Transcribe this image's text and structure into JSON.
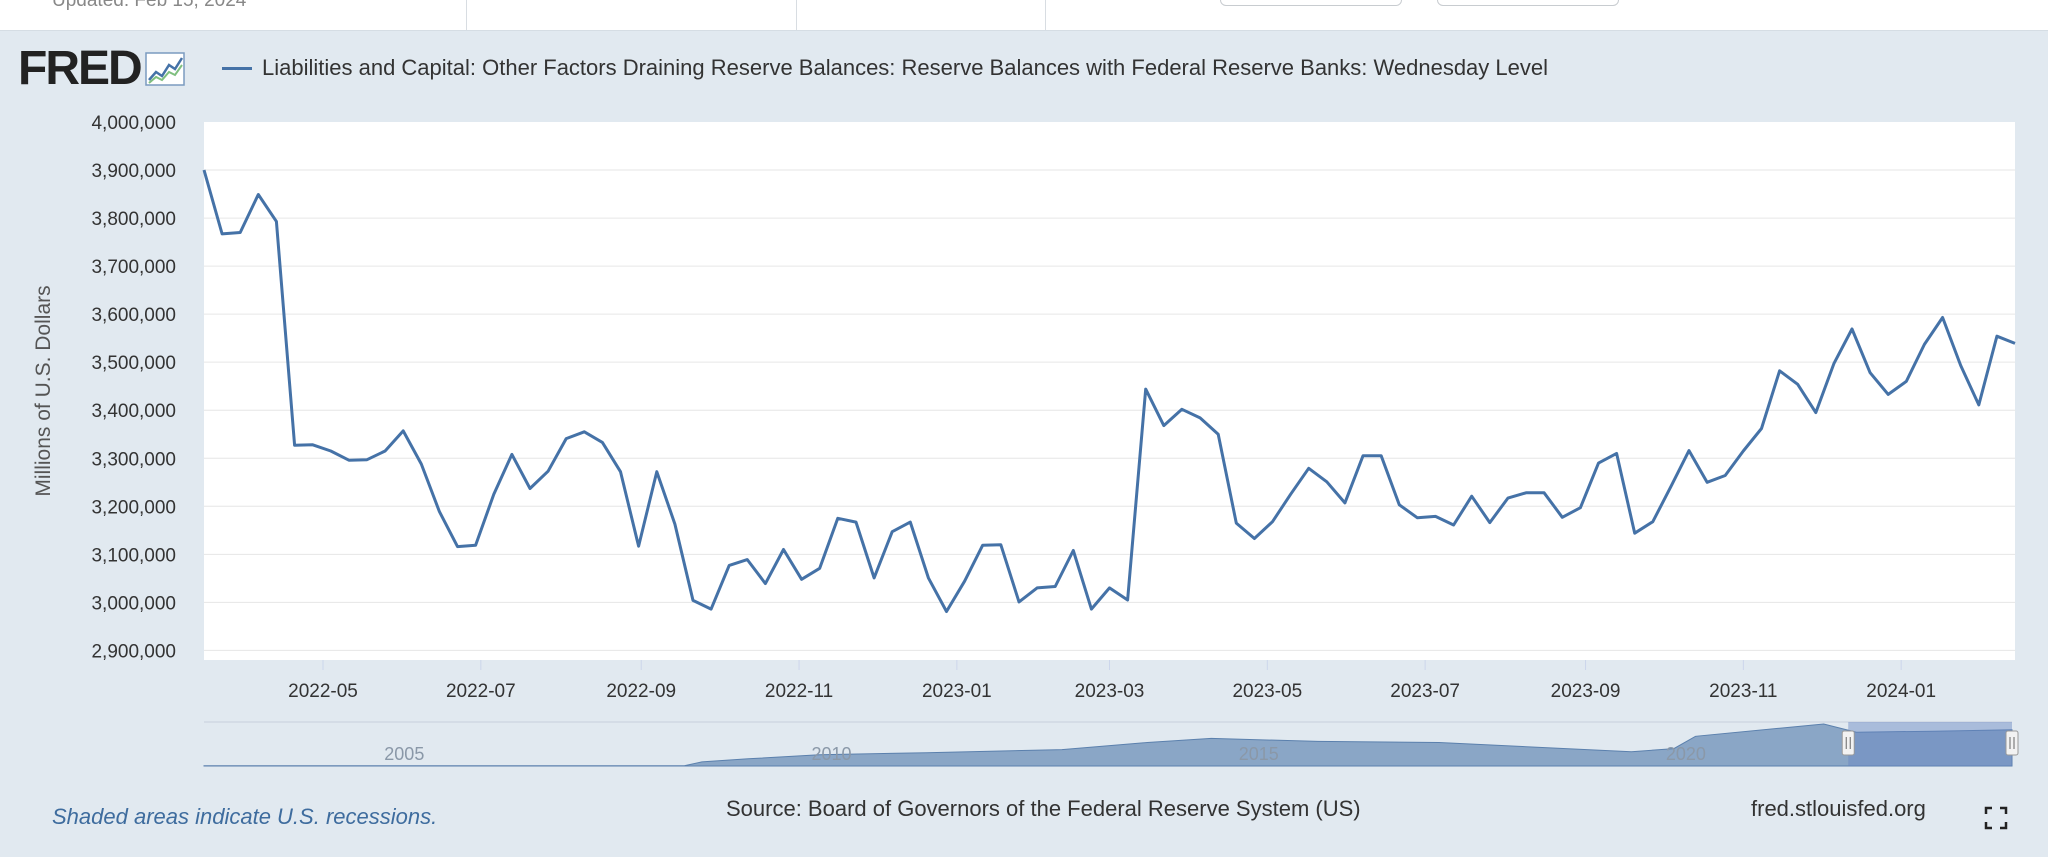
{
  "header": {
    "updated": "Updated: Feb 15, 2024"
  },
  "logo": {
    "text": "FRED"
  },
  "chart_data": {
    "type": "line",
    "title": "",
    "ylabel": "Millions of U.S. Dollars",
    "xlabel": "",
    "ylim": [
      2880000,
      4000000
    ],
    "grid": true,
    "legend_placement": "top-left",
    "y_ticks": [
      "4,000,000",
      "3,900,000",
      "3,800,000",
      "3,700,000",
      "3,600,000",
      "3,500,000",
      "3,400,000",
      "3,300,000",
      "3,200,000",
      "3,100,000",
      "3,000,000",
      "2,900,000"
    ],
    "y_tick_values": [
      4000000,
      3900000,
      3800000,
      3700000,
      3600000,
      3500000,
      3400000,
      3300000,
      3200000,
      3100000,
      3000000,
      2900000
    ],
    "x_ticks": [
      {
        "label": "2022-05",
        "date": "2022-05-01"
      },
      {
        "label": "2022-07",
        "date": "2022-07-01"
      },
      {
        "label": "2022-09",
        "date": "2022-09-01"
      },
      {
        "label": "2022-11",
        "date": "2022-11-01"
      },
      {
        "label": "2023-01",
        "date": "2023-01-01"
      },
      {
        "label": "2023-03",
        "date": "2023-03-01"
      },
      {
        "label": "2023-05",
        "date": "2023-05-01"
      },
      {
        "label": "2023-07",
        "date": "2023-07-01"
      },
      {
        "label": "2023-09",
        "date": "2023-09-01"
      },
      {
        "label": "2023-11",
        "date": "2023-11-01"
      },
      {
        "label": "2024-01",
        "date": "2024-01-01"
      }
    ],
    "x_range": [
      "2022-03-16",
      "2024-02-14"
    ],
    "series": [
      {
        "name": "Liabilities and Capital: Other Factors Draining Reserve Balances: Reserve Balances with Federal Reserve Banks: Wednesday Level",
        "color": "#4572a7",
        "points": [
          [
            "2022-03-16",
            3900000
          ],
          [
            "2022-03-23",
            3767000
          ],
          [
            "2022-03-30",
            3770000
          ],
          [
            "2022-04-06",
            3849000
          ],
          [
            "2022-04-13",
            3793000
          ],
          [
            "2022-04-20",
            3327000
          ],
          [
            "2022-04-27",
            3328000
          ],
          [
            "2022-05-04",
            3315000
          ],
          [
            "2022-05-11",
            3296000
          ],
          [
            "2022-05-18",
            3297000
          ],
          [
            "2022-05-25",
            3315000
          ],
          [
            "2022-06-01",
            3357000
          ],
          [
            "2022-06-08",
            3288000
          ],
          [
            "2022-06-15",
            3189000
          ],
          [
            "2022-06-22",
            3116000
          ],
          [
            "2022-06-29",
            3119000
          ],
          [
            "2022-07-06",
            3225000
          ],
          [
            "2022-07-13",
            3308000
          ],
          [
            "2022-07-20",
            3237000
          ],
          [
            "2022-07-27",
            3273000
          ],
          [
            "2022-08-03",
            3341000
          ],
          [
            "2022-08-10",
            3355000
          ],
          [
            "2022-08-17",
            3333000
          ],
          [
            "2022-08-24",
            3272000
          ],
          [
            "2022-08-31",
            3117000
          ],
          [
            "2022-09-07",
            3272000
          ],
          [
            "2022-09-14",
            3163000
          ],
          [
            "2022-09-21",
            3004000
          ],
          [
            "2022-09-28",
            2986000
          ],
          [
            "2022-10-05",
            3077000
          ],
          [
            "2022-10-12",
            3089000
          ],
          [
            "2022-10-19",
            3039000
          ],
          [
            "2022-10-26",
            3110000
          ],
          [
            "2022-11-02",
            3048000
          ],
          [
            "2022-11-09",
            3071000
          ],
          [
            "2022-11-16",
            3175000
          ],
          [
            "2022-11-23",
            3167000
          ],
          [
            "2022-11-30",
            3051000
          ],
          [
            "2022-12-07",
            3147000
          ],
          [
            "2022-12-14",
            3167000
          ],
          [
            "2022-12-21",
            3051000
          ],
          [
            "2022-12-28",
            2981000
          ],
          [
            "2023-01-04",
            3044000
          ],
          [
            "2023-01-11",
            3119000
          ],
          [
            "2023-01-18",
            3120000
          ],
          [
            "2023-01-25",
            3001000
          ],
          [
            "2023-02-01",
            3030000
          ],
          [
            "2023-02-08",
            3033000
          ],
          [
            "2023-02-15",
            3108000
          ],
          [
            "2023-02-22",
            2986000
          ],
          [
            "2023-03-01",
            3030000
          ],
          [
            "2023-03-08",
            3005000
          ],
          [
            "2023-03-15",
            3444000
          ],
          [
            "2023-03-22",
            3368000
          ],
          [
            "2023-03-29",
            3402000
          ],
          [
            "2023-04-05",
            3384000
          ],
          [
            "2023-04-12",
            3350000
          ],
          [
            "2023-04-19",
            3165000
          ],
          [
            "2023-04-26",
            3133000
          ],
          [
            "2023-05-03",
            3168000
          ],
          [
            "2023-05-10",
            3225000
          ],
          [
            "2023-05-17",
            3279000
          ],
          [
            "2023-05-24",
            3251000
          ],
          [
            "2023-05-31",
            3207000
          ],
          [
            "2023-06-07",
            3305000
          ],
          [
            "2023-06-14",
            3305000
          ],
          [
            "2023-06-21",
            3203000
          ],
          [
            "2023-06-28",
            3176000
          ],
          [
            "2023-07-05",
            3179000
          ],
          [
            "2023-07-12",
            3161000
          ],
          [
            "2023-07-19",
            3221000
          ],
          [
            "2023-07-26",
            3166000
          ],
          [
            "2023-08-02",
            3217000
          ],
          [
            "2023-08-09",
            3228000
          ],
          [
            "2023-08-16",
            3228000
          ],
          [
            "2023-08-23",
            3177000
          ],
          [
            "2023-08-30",
            3197000
          ],
          [
            "2023-09-06",
            3290000
          ],
          [
            "2023-09-13",
            3310000
          ],
          [
            "2023-09-20",
            3144000
          ],
          [
            "2023-09-27",
            3168000
          ],
          [
            "2023-10-04",
            3241000
          ],
          [
            "2023-10-11",
            3316000
          ],
          [
            "2023-10-18",
            3250000
          ],
          [
            "2023-10-25",
            3264000
          ],
          [
            "2023-11-01",
            3315000
          ],
          [
            "2023-11-08",
            3362000
          ],
          [
            "2023-11-15",
            3482000
          ],
          [
            "2023-11-22",
            3454000
          ],
          [
            "2023-11-29",
            3395000
          ],
          [
            "2023-12-06",
            3497000
          ],
          [
            "2023-12-13",
            3569000
          ],
          [
            "2023-12-20",
            3478000
          ],
          [
            "2023-12-27",
            3433000
          ],
          [
            "2024-01-03",
            3460000
          ],
          [
            "2024-01-10",
            3537000
          ],
          [
            "2024-01-17",
            3593000
          ],
          [
            "2024-01-24",
            3493000
          ],
          [
            "2024-01-31",
            3411000
          ],
          [
            "2024-02-07",
            3554000
          ],
          [
            "2024-02-14",
            3539000
          ]
        ]
      }
    ],
    "navigator": {
      "year_labels": [
        "2005",
        "2010",
        "2015",
        "2020"
      ],
      "year_label_dates": [
        "2005-01-01",
        "2010-01-01",
        "2015-01-01",
        "2020-01-01"
      ],
      "range": [
        "2002-12-18",
        "2024-02-14"
      ],
      "selected": [
        "2022-03-16",
        "2024-02-14"
      ],
      "ylim": [
        0,
        4300000
      ],
      "profile": [
        [
          "2002-12-18",
          20000
        ],
        [
          "2008-08-01",
          20000
        ],
        [
          "2008-10-15",
          400000
        ],
        [
          "2009-05-01",
          700000
        ],
        [
          "2010-03-01",
          1100000
        ],
        [
          "2011-06-01",
          1300000
        ],
        [
          "2012-06-01",
          1500000
        ],
        [
          "2013-01-01",
          1600000
        ],
        [
          "2014-01-01",
          2300000
        ],
        [
          "2014-10-01",
          2700000
        ],
        [
          "2016-01-01",
          2400000
        ],
        [
          "2017-06-01",
          2300000
        ],
        [
          "2019-09-01",
          1400000
        ],
        [
          "2020-03-01",
          1700000
        ],
        [
          "2020-06-01",
          2900000
        ],
        [
          "2021-06-01",
          3700000
        ],
        [
          "2021-12-01",
          4100000
        ],
        [
          "2022-04-20",
          3300000
        ],
        [
          "2023-03-15",
          3400000
        ],
        [
          "2024-02-14",
          3540000
        ]
      ]
    }
  },
  "footer": {
    "recession_note": "Shaded areas indicate U.S. recessions.",
    "source": "Source: Board of Governors of the Federal Reserve System (US)",
    "site": "fred.stlouisfed.org"
  }
}
